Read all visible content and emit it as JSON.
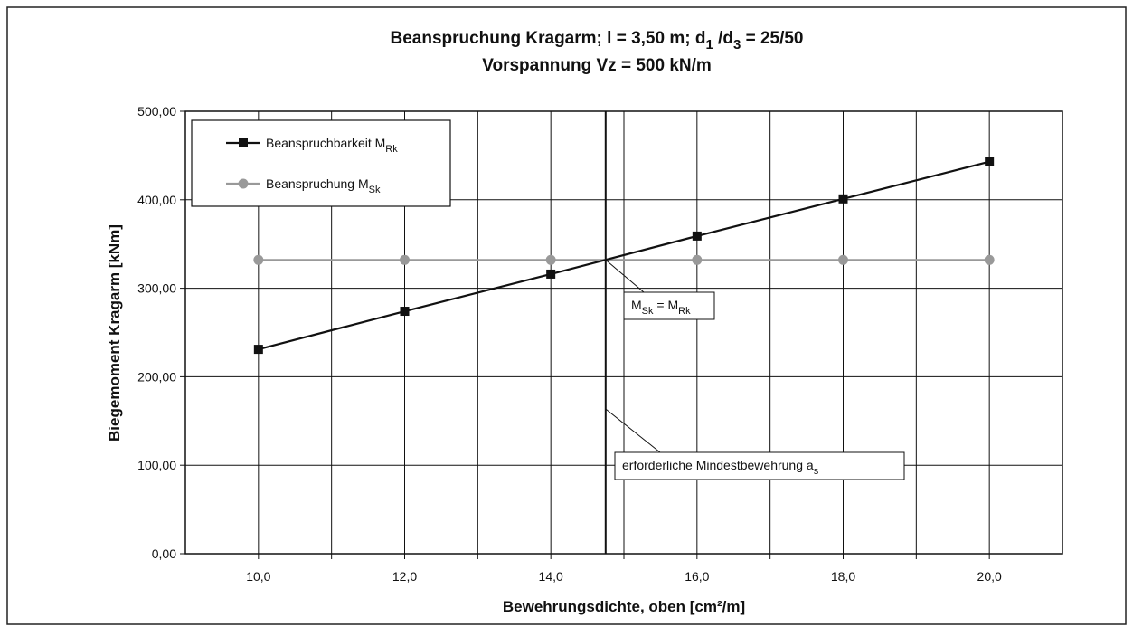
{
  "chart_data": {
    "type": "line",
    "title": [
      [
        "Beanspruchung Kragarm; l = 3,50 m; d",
        "1",
        " /d",
        "3",
        " = 25/50"
      ],
      [
        "Vorspannung Vz = 500 kN/m"
      ]
    ],
    "x_label": "Bewehrungsdichte, oben [cm²/m]",
    "y_label": "Biegemoment Kragarm [kNm]",
    "x": [
      10,
      12,
      14,
      16,
      18,
      20
    ],
    "series": [
      {
        "name": [
          "Beanspruchbarkeit M",
          "Rk"
        ],
        "color": "#111111",
        "marker": "square",
        "values": [
          231,
          274,
          316,
          359,
          401,
          443
        ]
      },
      {
        "name": [
          "Beanspruchung M",
          "Sk"
        ],
        "color": "#999999",
        "marker": "circle",
        "values": [
          332,
          332,
          332,
          332,
          332,
          332
        ]
      }
    ],
    "xlim": [
      9,
      21
    ],
    "xticks": [
      {
        "value": 10,
        "label": "10,0"
      },
      {
        "value": 12,
        "label": "12,0"
      },
      {
        "value": 14,
        "label": "14,0"
      },
      {
        "value": 16,
        "label": "16,0"
      },
      {
        "value": 18,
        "label": "18,0"
      },
      {
        "value": 20,
        "label": "20,0"
      }
    ],
    "xminor": [
      11,
      13,
      15,
      17,
      19
    ],
    "ylim": [
      0,
      500
    ],
    "yticks": [
      {
        "value": 0,
        "label": "0,00"
      },
      {
        "value": 100,
        "label": "100,00"
      },
      {
        "value": 200,
        "label": "200,00"
      },
      {
        "value": 300,
        "label": "300,00"
      },
      {
        "value": 400,
        "label": "400,00"
      },
      {
        "value": 500,
        "label": "500,00"
      }
    ],
    "grid": true,
    "legend": "upper left",
    "vline": 14.75,
    "annotations": [
      {
        "text": [
          "M",
          "Sk",
          " = M",
          "Rk"
        ]
      },
      {
        "text": [
          "erforderliche Mindestbewehrung a",
          "s"
        ]
      }
    ]
  }
}
